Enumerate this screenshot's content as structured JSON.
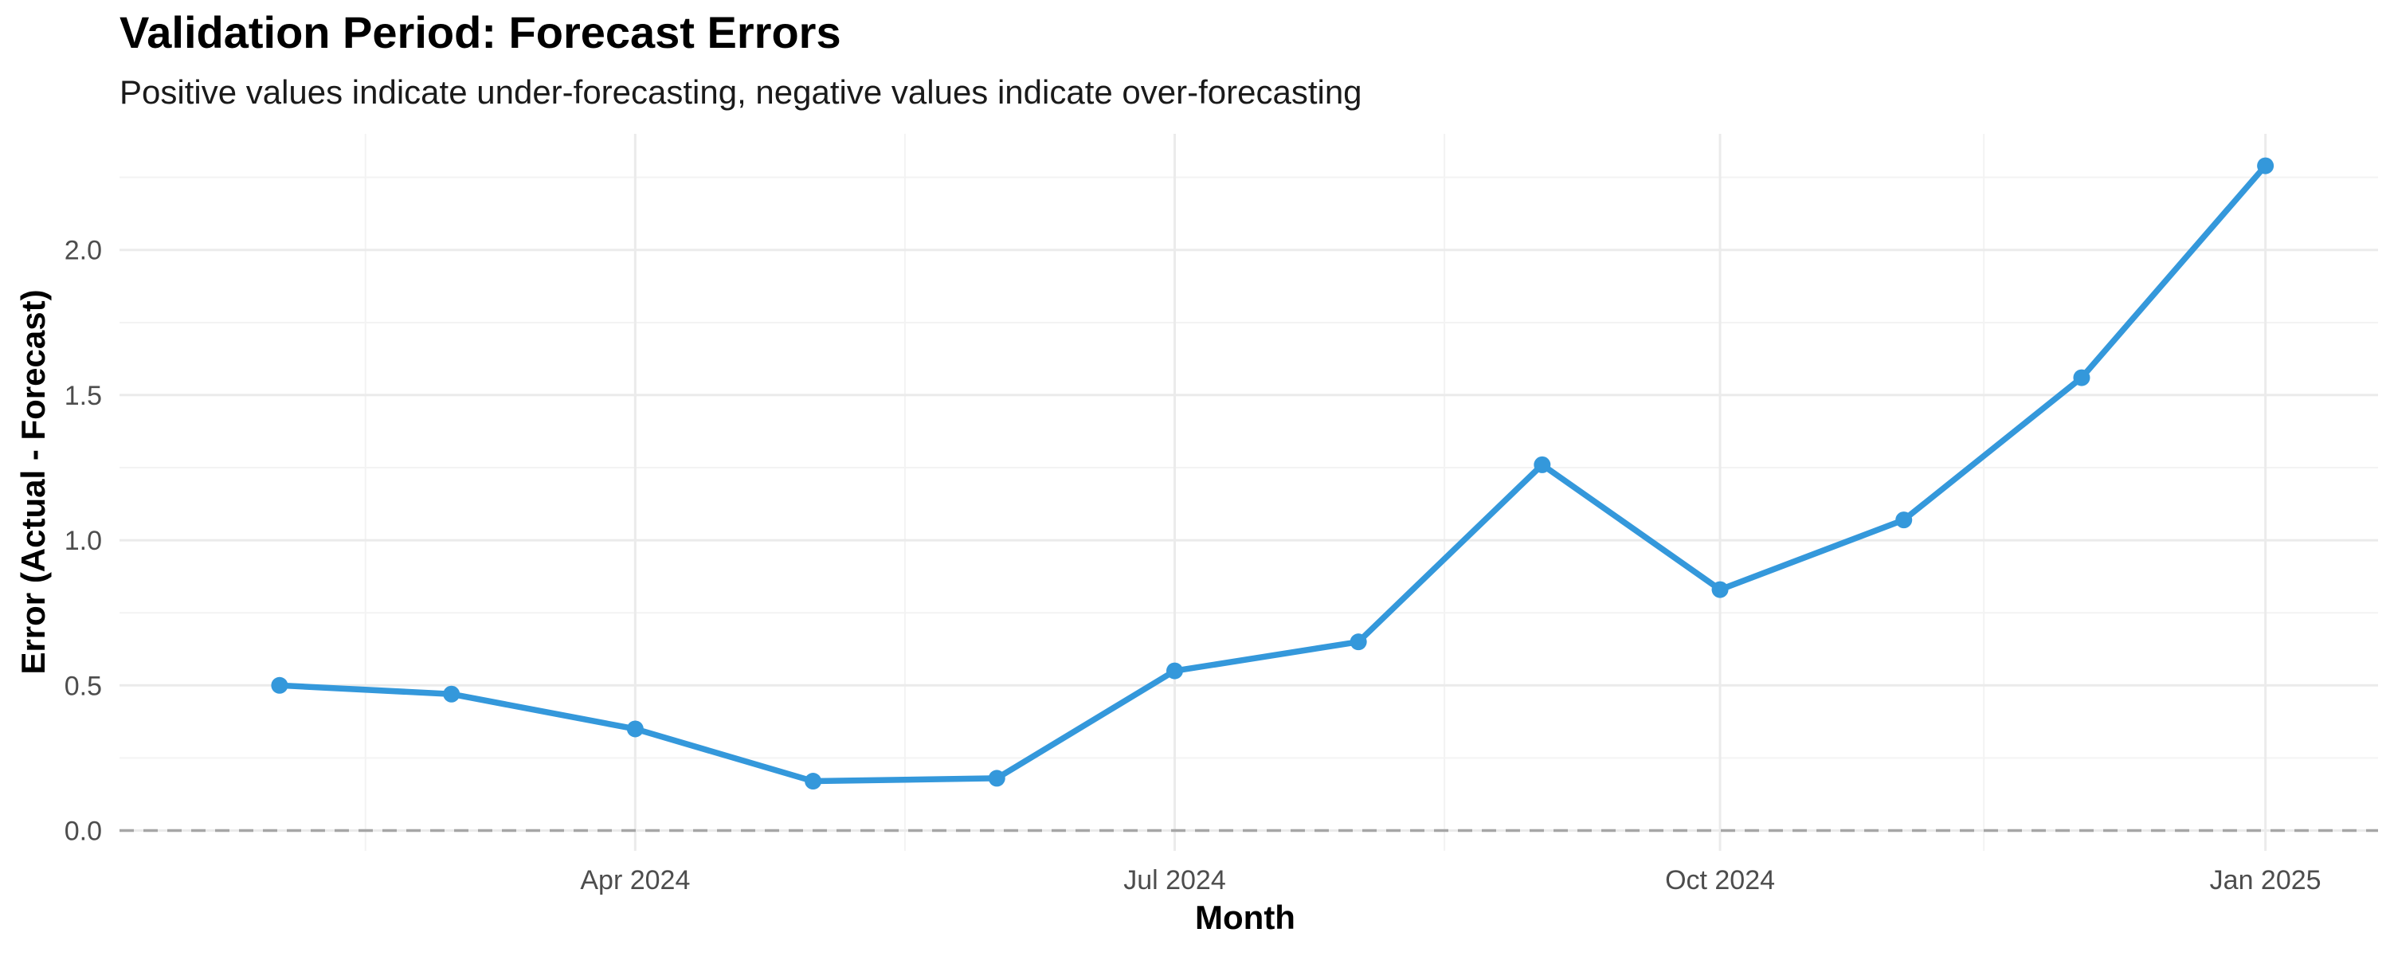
{
  "chart_data": {
    "type": "line",
    "title": "Validation Period: Forecast Errors",
    "subtitle": "Positive values indicate under-forecasting, negative values indicate over-forecasting",
    "xlabel": "Month",
    "ylabel": "Error (Actual - Forecast)",
    "x": [
      "2024-02-01",
      "2024-03-01",
      "2024-04-01",
      "2024-05-01",
      "2024-06-01",
      "2024-07-01",
      "2024-08-01",
      "2024-09-01",
      "2024-10-01",
      "2024-11-01",
      "2024-12-01",
      "2025-01-01"
    ],
    "series": [
      {
        "values": [
          0.5,
          0.47,
          0.35,
          0.17,
          0.18,
          0.55,
          0.65,
          1.26,
          0.83,
          1.07,
          1.56,
          2.29
        ]
      }
    ],
    "ylim": [
      -0.07,
      2.4
    ],
    "xlim": [
      "2024-01-05",
      "2025-01-20"
    ],
    "y_ticks": [
      {
        "value": 0.0,
        "label": "0.0"
      },
      {
        "value": 0.5,
        "label": "0.5"
      },
      {
        "value": 1.0,
        "label": "1.0"
      },
      {
        "value": 1.5,
        "label": "1.5"
      },
      {
        "value": 2.0,
        "label": "2.0"
      }
    ],
    "x_ticks": [
      {
        "value": "2024-04-01",
        "label": "Apr 2024"
      },
      {
        "value": "2024-07-01",
        "label": "Jul 2024"
      },
      {
        "value": "2024-10-01",
        "label": "Oct 2024"
      },
      {
        "value": "2025-01-01",
        "label": "Jan 2025"
      }
    ],
    "reference_line": 0,
    "grid": true,
    "legend": "none",
    "colors": {
      "line": "#3498db",
      "reference": "#a6a6a6",
      "grid_major": "#ebebeb",
      "grid_minor": "#f3f3f3"
    }
  }
}
